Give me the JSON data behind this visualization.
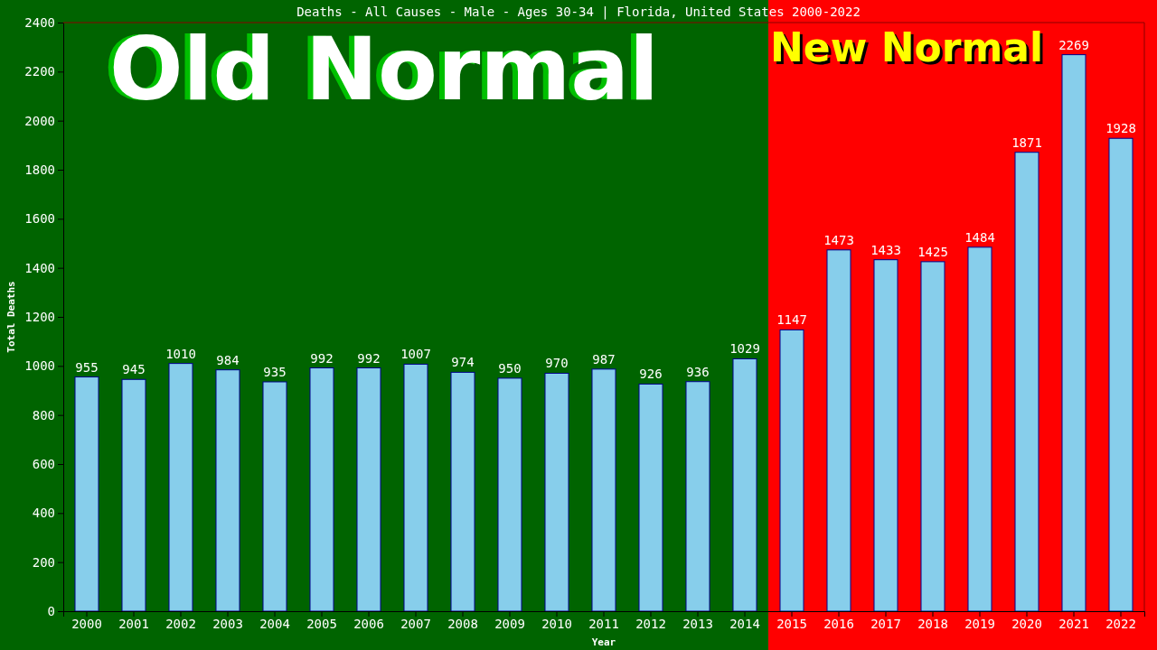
{
  "chart_data": {
    "type": "bar",
    "title": "Deaths - All Causes - Male - Ages 30-34 | Florida, United States 2000-2022",
    "xlabel": "Year",
    "ylabel": "Total Deaths",
    "categories": [
      "2000",
      "2001",
      "2002",
      "2003",
      "2004",
      "2005",
      "2006",
      "2007",
      "2008",
      "2009",
      "2010",
      "2011",
      "2012",
      "2013",
      "2014",
      "2015",
      "2016",
      "2017",
      "2018",
      "2019",
      "2020",
      "2021",
      "2022"
    ],
    "values": [
      955,
      945,
      1010,
      984,
      935,
      992,
      992,
      1007,
      974,
      950,
      970,
      987,
      926,
      936,
      1029,
      1147,
      1473,
      1433,
      1425,
      1484,
      1871,
      2269,
      1928
    ],
    "color": "#87ceeb",
    "ylim": [
      0,
      2400
    ],
    "yticks": [
      0,
      200,
      400,
      600,
      800,
      1000,
      1200,
      1400,
      1600,
      1800,
      2000,
      2200,
      2400
    ],
    "grid": false,
    "data_labels": true,
    "bands": [
      {
        "axis": "x",
        "from": "2000",
        "to": "2014",
        "label": "Old Normal",
        "color": "#006400"
      },
      {
        "axis": "x",
        "from": "2015",
        "to": "2022",
        "label": "New Normal",
        "color": "#ff0000"
      }
    ]
  }
}
